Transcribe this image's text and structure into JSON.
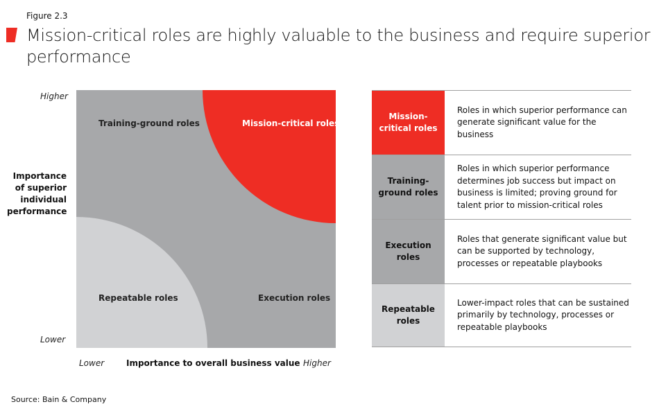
{
  "figure_label": "Figure 2.3",
  "title": "Mission-critical roles are highly valuable to the business and require superior performance",
  "colors": {
    "accent": "#ee2d24",
    "mid_gray": "#a7a8aa",
    "light_gray": "#d1d2d4"
  },
  "matrix": {
    "y_axis": {
      "label": "Importance of superior individual performance",
      "high": "Higher",
      "low": "Lower"
    },
    "x_axis": {
      "label": "Importance to overall business value",
      "low": "Lower",
      "high": "Higher"
    },
    "quadrants": {
      "top_left": "Training-ground roles",
      "top_right": "Mission-critical roles",
      "bottom_left": "Repeatable roles",
      "bottom_right": "Execution roles"
    }
  },
  "table": [
    {
      "name": "Mission-critical roles",
      "desc": "Roles in which superior performance can generate significant value for the business",
      "color": "#ee2d24"
    },
    {
      "name": "Training-ground roles",
      "desc": "Roles in which superior performance determines job success but impact on business is limited; proving ground for talent prior to mission-critical roles",
      "color": "#a7a8aa"
    },
    {
      "name": "Execution roles",
      "desc": "Roles that generate significant value but can be supported by technology, processes or repeatable playbooks",
      "color": "#a7a8aa"
    },
    {
      "name": "Repeatable roles",
      "desc": "Lower-impact roles that can be sustained primarily by technology, processes or repeatable playbooks",
      "color": "#d1d2d4"
    }
  ],
  "source": "Source: Bain & Company"
}
